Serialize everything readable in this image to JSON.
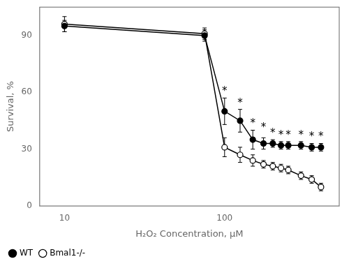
{
  "chart_data": {
    "type": "line",
    "x_label": "H₂O₂ Concentration, μM",
    "y_label": "Survival, %",
    "log": "x",
    "xlim": [
      7,
      520
    ],
    "xticks": [
      10,
      100
    ],
    "ylim": [
      0,
      105
    ],
    "yticks": [
      0,
      30,
      60,
      90
    ],
    "grid": false,
    "legend": "lower left",
    "series": [
      {
        "name": "WT",
        "color": "#000000",
        "marker": "circle",
        "x": [
          10,
          75,
          100,
          125,
          150,
          175,
          200,
          225,
          250,
          300,
          350,
          400
        ],
        "values": [
          95,
          90,
          50,
          45,
          35,
          33,
          33,
          32,
          32,
          32,
          31,
          31
        ],
        "error": [
          3,
          3,
          7,
          6,
          5,
          3,
          2,
          2,
          2,
          2,
          2,
          2
        ]
      },
      {
        "name": "Bmal1-/-",
        "color": "#000000",
        "marker": "open_circle",
        "x": [
          10,
          75,
          100,
          125,
          150,
          175,
          200,
          225,
          250,
          300,
          350,
          400
        ],
        "values": [
          96,
          91,
          31,
          27,
          24,
          22,
          21,
          20,
          19,
          16,
          14,
          10
        ],
        "error": [
          4,
          3,
          5,
          4,
          3,
          2,
          2,
          2,
          2,
          2,
          2,
          2
        ]
      }
    ],
    "annotations": [
      {
        "x": 100,
        "y": 59,
        "text": "*"
      },
      {
        "x": 125,
        "y": 53,
        "text": "*"
      },
      {
        "x": 150,
        "y": 42,
        "text": "*"
      },
      {
        "x": 175,
        "y": 40,
        "text": "*"
      },
      {
        "x": 200,
        "y": 37,
        "text": "*"
      },
      {
        "x": 225,
        "y": 36,
        "text": "*"
      },
      {
        "x": 250,
        "y": 36,
        "text": "*"
      },
      {
        "x": 300,
        "y": 36,
        "text": "*"
      },
      {
        "x": 350,
        "y": 35,
        "text": "*"
      },
      {
        "x": 400,
        "y": 35,
        "text": "*"
      }
    ]
  }
}
